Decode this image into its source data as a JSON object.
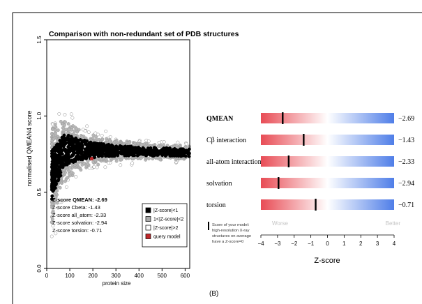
{
  "panel_label": "(B)",
  "chart_data": [
    {
      "type": "scatter",
      "title": "Comparison with non-redundant set of PDB structures",
      "xlabel": "protein size",
      "ylabel": "normalised QMEAN4 score",
      "xlim": [
        0,
        620
      ],
      "ylim": [
        0,
        1.5
      ],
      "x_ticks": [
        0,
        100,
        200,
        300,
        400,
        500,
        600
      ],
      "y_ticks": [
        0.0,
        0.5,
        1.0,
        1.5
      ],
      "query_model": {
        "x": 195,
        "y": 0.72
      },
      "score_text": [
        "Z-score QMEAN: -2.69",
        "Z-score Cbeta: -1.43",
        "Z-score all_atom: -2.33",
        "Z-score solvation: -2.94",
        "Z-score torsion: -0.71"
      ],
      "legend": [
        {
          "label": "|Z-score|<1",
          "color": "#000000"
        },
        {
          "label": "1<|Z-score|<2",
          "color": "#a9a9a9"
        },
        {
          "label": "|Z-score|>2",
          "color": "#ffffff"
        },
        {
          "label": "query model",
          "color": "#c0282a"
        }
      ],
      "legend_position": "bottom-right",
      "grid": false
    },
    {
      "type": "bar",
      "xlabel": "Z-score",
      "xlim": [
        -4,
        4
      ],
      "x_ticks": [
        -4,
        -3,
        -2,
        -1,
        0,
        1,
        2,
        3,
        4
      ],
      "worse_label": "Worse",
      "better_label": "Better",
      "note_lines": [
        "Score of your model:",
        "high-resolution X-ray",
        "structures on average",
        "have a Z-score=0"
      ],
      "rows": [
        {
          "label": "QMEAN",
          "value": -2.69,
          "value_text": "−2.69",
          "bold": true
        },
        {
          "label": "Cβ interaction",
          "value": -1.43,
          "value_text": "−1.43",
          "bold": false
        },
        {
          "label": "all-atom interaction",
          "value": -2.33,
          "value_text": "−2.33",
          "bold": false
        },
        {
          "label": "solvation",
          "value": -2.94,
          "value_text": "−2.94",
          "bold": false
        },
        {
          "label": "torsion",
          "value": -0.71,
          "value_text": "−0.71",
          "bold": false
        }
      ],
      "gradient_colors": {
        "worse": "#e84c55",
        "mid": "#ffffff",
        "better": "#4f7ee8"
      }
    }
  ]
}
